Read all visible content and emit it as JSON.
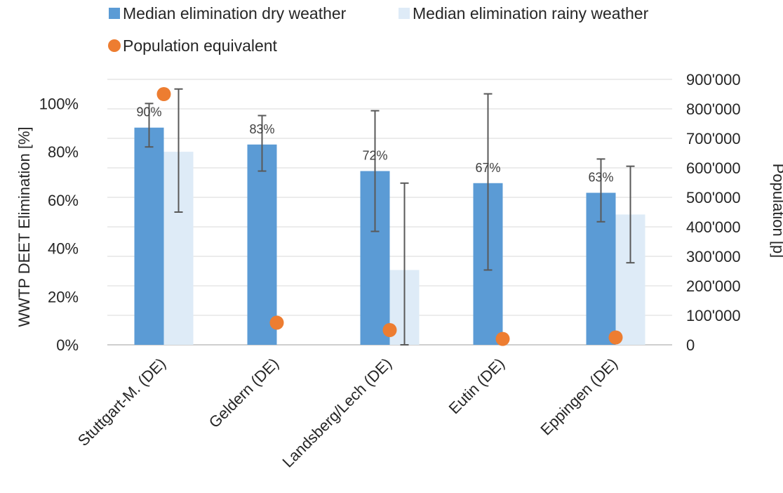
{
  "chart_data": {
    "type": "bar",
    "categories": [
      "Stuttgart-M. (DE)",
      "Geldern (DE)",
      "Landsberg/Lech (DE)",
      "Eutin (DE)",
      "Eppingen (DE)"
    ],
    "series": [
      {
        "name": "Median elimination dry weather",
        "axis": "left",
        "values": [
          90,
          83,
          72,
          67,
          63
        ],
        "data_labels": [
          "90%",
          "83%",
          "72%",
          "67%",
          "63%"
        ],
        "error_low": [
          82,
          72,
          47,
          31,
          51
        ],
        "error_high": [
          100,
          95,
          97,
          104,
          77
        ],
        "color": "#5B9BD5"
      },
      {
        "name": "Median elimination rainy weather",
        "axis": "left",
        "values": [
          80,
          null,
          31,
          null,
          54
        ],
        "error_low": [
          55,
          null,
          0,
          null,
          34
        ],
        "error_high": [
          106,
          null,
          67,
          null,
          74
        ],
        "color": "#DEEBF7"
      },
      {
        "name": "Population equivalent",
        "axis": "right",
        "type": "scatter",
        "values": [
          850000,
          75000,
          50000,
          20000,
          25000
        ],
        "color": "#ED7D31"
      }
    ],
    "y_left": {
      "label": "WWTP DEET Elimination [%]",
      "ylim": [
        0,
        110
      ],
      "ticks": [
        0,
        20,
        40,
        60,
        80,
        100
      ],
      "tick_labels": [
        "0%",
        "20%",
        "40%",
        "60%",
        "80%",
        "100%"
      ]
    },
    "y_right": {
      "label": "Population [p]",
      "ylim": [
        0,
        900000
      ],
      "ticks": [
        0,
        100000,
        200000,
        300000,
        400000,
        500000,
        600000,
        700000,
        800000,
        900000
      ],
      "tick_labels": [
        "0",
        "100'000",
        "200'000",
        "300'000",
        "400'000",
        "500'000",
        "600'000",
        "700'000",
        "800'000",
        "900'000"
      ]
    },
    "grid": true,
    "legend_position": "top"
  }
}
